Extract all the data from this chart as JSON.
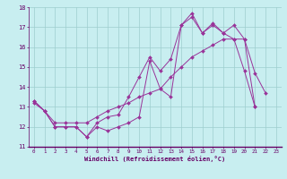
{
  "title": "",
  "xlabel": "Windchill (Refroidissement éolien,°C)",
  "ylabel": "",
  "xlim": [
    -0.5,
    23.5
  ],
  "ylim": [
    11,
    18
  ],
  "xticks": [
    0,
    1,
    2,
    3,
    4,
    5,
    6,
    7,
    8,
    9,
    10,
    11,
    12,
    13,
    14,
    15,
    16,
    17,
    18,
    19,
    20,
    21,
    22,
    23
  ],
  "yticks": [
    11,
    12,
    13,
    14,
    15,
    16,
    17,
    18
  ],
  "bg_color": "#c8eef0",
  "line_color": "#993399",
  "grid_color": "#9ecece",
  "series": [
    [
      13.3,
      12.8,
      12.0,
      12.0,
      12.0,
      11.5,
      12.0,
      11.8,
      12.0,
      12.2,
      12.5,
      15.3,
      13.9,
      13.5,
      17.1,
      17.5,
      16.7,
      17.1,
      16.7,
      16.4,
      14.8,
      13.0,
      null,
      null
    ],
    [
      13.3,
      12.8,
      12.0,
      12.0,
      12.0,
      11.5,
      12.2,
      12.5,
      12.6,
      13.5,
      14.5,
      15.5,
      14.8,
      15.4,
      17.1,
      17.7,
      16.7,
      17.2,
      16.7,
      17.1,
      16.4,
      14.7,
      13.7,
      null
    ],
    [
      13.2,
      12.8,
      12.2,
      12.2,
      12.2,
      12.2,
      12.5,
      12.8,
      13.0,
      13.2,
      13.5,
      13.7,
      13.9,
      14.5,
      15.0,
      15.5,
      15.8,
      16.1,
      16.4,
      16.4,
      16.4,
      13.0,
      null,
      null
    ]
  ]
}
